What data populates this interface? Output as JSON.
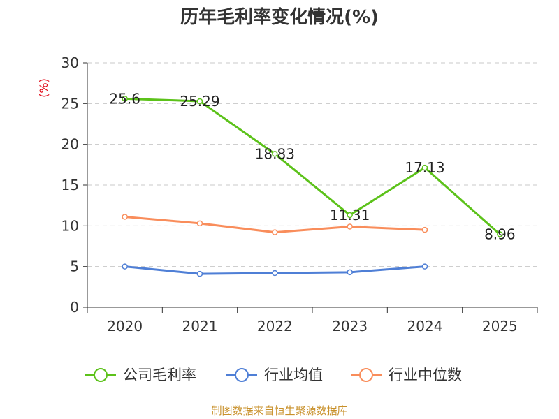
{
  "title": "历年毛利率变化情况(%)",
  "source": "制图数据来自恒生聚源数据库",
  "colors": {
    "company": "#5cc21a",
    "industry_avg": "#4f7fd6",
    "industry_median": "#f98d5b",
    "axis_label": "#e0000f",
    "grid": "#c8c8c8",
    "text": "#333333"
  },
  "chart_data": {
    "type": "line",
    "title": "历年毛利率变化情况(%)",
    "xlabel": "",
    "ylabel": "(%)",
    "categories": [
      "2020",
      "2021",
      "2022",
      "2023",
      "2024",
      "2025"
    ],
    "ylim": [
      0,
      30
    ],
    "yticks": [
      "0",
      "5",
      "10",
      "15",
      "20",
      "25",
      "30"
    ],
    "grid": true,
    "legend_position": "bottom",
    "series": [
      {
        "name": "公司毛利率",
        "color": "#5cc21a",
        "values": [
          25.6,
          25.29,
          18.83,
          11.31,
          17.13,
          8.96
        ],
        "labels": [
          "25.6",
          "25.29",
          "18.83",
          "11.31",
          "17.13",
          "8.96"
        ]
      },
      {
        "name": "行业均值",
        "color": "#4f7fd6",
        "values": [
          5.0,
          4.1,
          4.2,
          4.3,
          5.0,
          null
        ]
      },
      {
        "name": "行业中位数",
        "color": "#f98d5b",
        "values": [
          11.1,
          10.3,
          9.2,
          9.9,
          9.5,
          null
        ]
      }
    ]
  }
}
